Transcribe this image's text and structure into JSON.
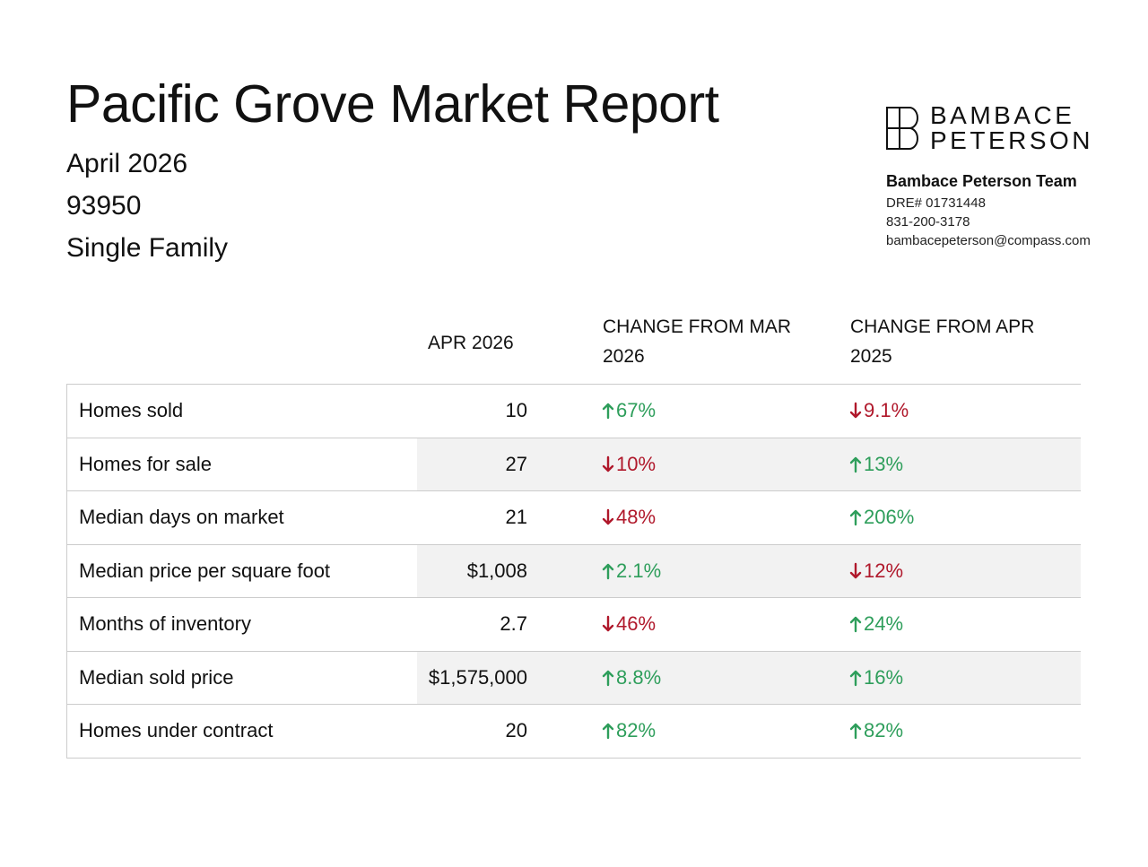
{
  "report": {
    "title": "Pacific Grove Market Report",
    "period": "April 2026",
    "zip": "93950",
    "property_type": "Single Family"
  },
  "brand": {
    "logo_line1": "BAMBACE",
    "logo_line2": "PETERSON",
    "team_name": "Bambace Peterson Team",
    "dre": "DRE# 01731448",
    "phone": "831-200-3178",
    "email": "bambacepeterson@compass.com"
  },
  "table": {
    "headers": {
      "label": "",
      "current": "APR 2026",
      "vs_prev_month": "CHANGE FROM MAR 2026",
      "vs_prev_year": "CHANGE FROM APR 2025"
    },
    "rows": [
      {
        "label": "Homes sold",
        "value": "10",
        "mom": "67%",
        "mom_dir": "up",
        "yoy": "9.1%",
        "yoy_dir": "down"
      },
      {
        "label": "Homes for sale",
        "value": "27",
        "mom": "10%",
        "mom_dir": "down",
        "yoy": "13%",
        "yoy_dir": "up"
      },
      {
        "label": "Median days on market",
        "value": "21",
        "mom": "48%",
        "mom_dir": "down",
        "yoy": "206%",
        "yoy_dir": "up"
      },
      {
        "label": "Median price per square foot",
        "value": "$1,008",
        "mom": "2.1%",
        "mom_dir": "up",
        "yoy": "12%",
        "yoy_dir": "down"
      },
      {
        "label": "Months of inventory",
        "value": "2.7",
        "mom": "46%",
        "mom_dir": "down",
        "yoy": "24%",
        "yoy_dir": "up"
      },
      {
        "label": "Median sold price",
        "value": "$1,575,000",
        "mom": "8.8%",
        "mom_dir": "up",
        "yoy": "16%",
        "yoy_dir": "up"
      },
      {
        "label": "Homes under contract",
        "value": "20",
        "mom": "82%",
        "mom_dir": "up",
        "yoy": "82%",
        "yoy_dir": "up"
      }
    ]
  },
  "colors": {
    "up": "#2e9e5b",
    "down": "#b0182b",
    "row_shade": "#f2f2f2",
    "border": "#cccccc"
  }
}
